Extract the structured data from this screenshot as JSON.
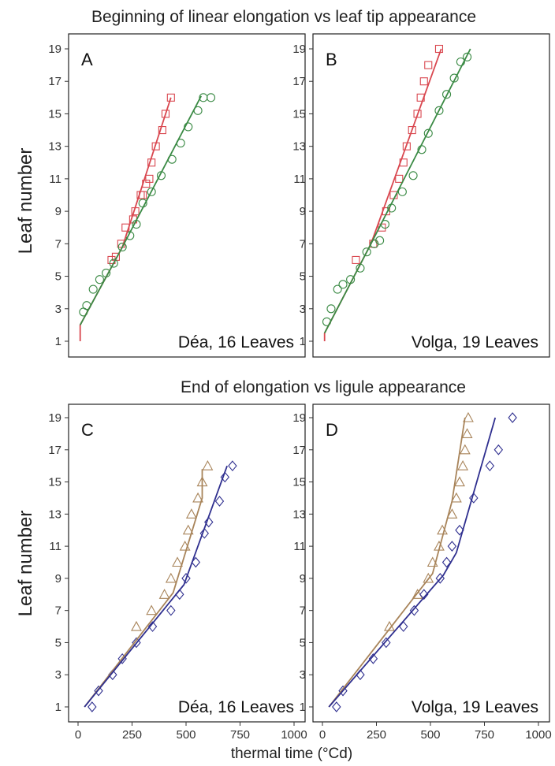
{
  "titles": {
    "top": "Beginning of linear elongation vs leaf tip appearance",
    "bottom": "End of elongation vs ligule appearance"
  },
  "axis": {
    "ylabel": "Leaf number",
    "xlabel": "thermal time (°Cd)",
    "yticks": [
      "1",
      "3",
      "5",
      "7",
      "9",
      "11",
      "13",
      "15",
      "17",
      "19"
    ],
    "xticks": [
      "0",
      "250",
      "500",
      "750",
      "1000"
    ]
  },
  "colors": {
    "red": "#d9474f",
    "green": "#3a8a44",
    "tan": "#a8845a",
    "navy": "#2f2f8f"
  },
  "chart_data": [
    {
      "type": "scatter",
      "panel": "A",
      "caption": "Déa, 16 Leaves",
      "xlim": [
        0,
        1000
      ],
      "ylim": [
        0.5,
        19.5
      ],
      "series": [
        {
          "marker": "square",
          "color": "red",
          "points": [
            [
              155,
              6
            ],
            [
              175,
              6.2
            ],
            [
              200,
              7
            ],
            [
              220,
              8
            ],
            [
              255,
              8.5
            ],
            [
              265,
              9
            ],
            [
              290,
              10
            ],
            [
              300,
              10
            ],
            [
              315,
              10.7
            ],
            [
              330,
              11
            ],
            [
              340,
              12
            ],
            [
              360,
              13
            ],
            [
              390,
              14
            ],
            [
              405,
              15
            ],
            [
              430,
              16
            ]
          ]
        },
        {
          "marker": "circle",
          "color": "green",
          "points": [
            [
              25,
              2.8
            ],
            [
              40,
              3.2
            ],
            [
              70,
              4.2
            ],
            [
              100,
              4.8
            ],
            [
              130,
              5.2
            ],
            [
              165,
              5.8
            ],
            [
              205,
              6.8
            ],
            [
              240,
              7.5
            ],
            [
              270,
              8.2
            ],
            [
              300,
              9.5
            ],
            [
              340,
              10.2
            ],
            [
              385,
              11.2
            ],
            [
              435,
              12.2
            ],
            [
              475,
              13.2
            ],
            [
              510,
              14.2
            ],
            [
              555,
              15.2
            ],
            [
              580,
              16
            ],
            [
              615,
              16
            ]
          ]
        },
        {
          "line": true,
          "color": "red",
          "points": [
            [
              10,
              1.0
            ],
            [
              10,
              2.0
            ],
            [
              205,
              6.8
            ],
            [
              430,
              16
            ]
          ]
        },
        {
          "line": true,
          "color": "green",
          "points": [
            [
              10,
              2.0
            ],
            [
              205,
              6.8
            ],
            [
              570,
              16.1
            ]
          ]
        }
      ]
    },
    {
      "type": "scatter",
      "panel": "B",
      "caption": "Volga, 19 Leaves",
      "xlim": [
        0,
        1000
      ],
      "ylim": [
        0.5,
        19.5
      ],
      "series": [
        {
          "marker": "square",
          "color": "red",
          "points": [
            [
              155,
              6
            ],
            [
              235,
              7
            ],
            [
              275,
              8
            ],
            [
              295,
              9
            ],
            [
              330,
              10
            ],
            [
              355,
              11
            ],
            [
              375,
              12
            ],
            [
              390,
              13
            ],
            [
              415,
              14
            ],
            [
              440,
              15
            ],
            [
              455,
              16
            ],
            [
              470,
              17
            ],
            [
              490,
              18
            ],
            [
              540,
              19
            ]
          ]
        },
        {
          "marker": "circle",
          "color": "green",
          "points": [
            [
              20,
              2.2
            ],
            [
              40,
              3
            ],
            [
              70,
              4.2
            ],
            [
              95,
              4.5
            ],
            [
              130,
              4.8
            ],
            [
              175,
              5.5
            ],
            [
              205,
              6.5
            ],
            [
              240,
              7
            ],
            [
              265,
              7.2
            ],
            [
              290,
              8.2
            ],
            [
              320,
              9.2
            ],
            [
              370,
              10.2
            ],
            [
              420,
              11.2
            ],
            [
              460,
              12.8
            ],
            [
              490,
              13.8
            ],
            [
              540,
              15.2
            ],
            [
              575,
              16.2
            ],
            [
              610,
              17.2
            ],
            [
              640,
              18.2
            ],
            [
              670,
              18.5
            ]
          ]
        },
        {
          "line": true,
          "color": "red",
          "points": [
            [
              10,
              1.0
            ],
            [
              10,
              1.5
            ],
            [
              225,
              7
            ],
            [
              550,
              19
            ]
          ]
        },
        {
          "line": true,
          "color": "green",
          "points": [
            [
              10,
              1.5
            ],
            [
              225,
              7
            ],
            [
              685,
              19
            ]
          ]
        }
      ]
    },
    {
      "type": "scatter",
      "panel": "C",
      "caption": "Déa, 16 Leaves",
      "xlim": [
        0,
        1000
      ],
      "ylim": [
        0.5,
        19.5
      ],
      "series": [
        {
          "marker": "triangle",
          "color": "tan",
          "points": [
            [
              270,
              6
            ],
            [
              340,
              7
            ],
            [
              400,
              8
            ],
            [
              430,
              9
            ],
            [
              460,
              10
            ],
            [
              495,
              11
            ],
            [
              510,
              12
            ],
            [
              525,
              13
            ],
            [
              555,
              14
            ],
            [
              575,
              15
            ],
            [
              600,
              16
            ]
          ]
        },
        {
          "marker": "diamond",
          "color": "navy",
          "points": [
            [
              65,
              1
            ],
            [
              95,
              2
            ],
            [
              160,
              3
            ],
            [
              205,
              4
            ],
            [
              270,
              5
            ],
            [
              345,
              6
            ],
            [
              430,
              7
            ],
            [
              470,
              8
            ],
            [
              500,
              9
            ],
            [
              545,
              10
            ],
            [
              585,
              11.8
            ],
            [
              605,
              12.5
            ],
            [
              655,
              13.8
            ],
            [
              680,
              15.3
            ],
            [
              715,
              16
            ]
          ]
        },
        {
          "line": true,
          "color": "tan",
          "points": [
            [
              30,
              1
            ],
            [
              440,
              8.1
            ],
            [
              575,
              14
            ],
            [
              575,
              15.8
            ]
          ]
        },
        {
          "line": true,
          "color": "navy",
          "points": [
            [
              30,
              1
            ],
            [
              490,
              8.6
            ],
            [
              690,
              16
            ]
          ]
        }
      ]
    },
    {
      "type": "scatter",
      "panel": "D",
      "caption": "Volga, 19 Leaves",
      "xlim": [
        0,
        1000
      ],
      "ylim": [
        0.5,
        19.5
      ],
      "series": [
        {
          "marker": "triangle",
          "color": "tan",
          "points": [
            [
              310,
              6
            ],
            [
              440,
              8
            ],
            [
              490,
              9
            ],
            [
              510,
              10
            ],
            [
              540,
              11
            ],
            [
              555,
              12
            ],
            [
              600,
              13
            ],
            [
              620,
              14
            ],
            [
              635,
              15
            ],
            [
              650,
              16
            ],
            [
              660,
              17
            ],
            [
              670,
              18
            ],
            [
              675,
              19
            ]
          ]
        },
        {
          "marker": "diamond",
          "color": "navy",
          "points": [
            [
              65,
              1
            ],
            [
              95,
              2
            ],
            [
              175,
              3
            ],
            [
              235,
              4
            ],
            [
              295,
              5
            ],
            [
              375,
              6
            ],
            [
              425,
              7
            ],
            [
              470,
              8
            ],
            [
              545,
              9
            ],
            [
              575,
              10
            ],
            [
              600,
              11
            ],
            [
              635,
              12
            ],
            [
              700,
              14
            ],
            [
              775,
              16
            ],
            [
              815,
              17
            ],
            [
              880,
              19
            ]
          ]
        },
        {
          "line": true,
          "color": "tan",
          "points": [
            [
              30,
              1
            ],
            [
              510,
              9.3
            ],
            [
              600,
              13.8
            ],
            [
              660,
              19
            ]
          ]
        },
        {
          "line": true,
          "color": "navy",
          "points": [
            [
              30,
              1
            ],
            [
              560,
              9.2
            ],
            [
              620,
              10.6
            ],
            [
              800,
              19
            ]
          ]
        }
      ]
    }
  ]
}
